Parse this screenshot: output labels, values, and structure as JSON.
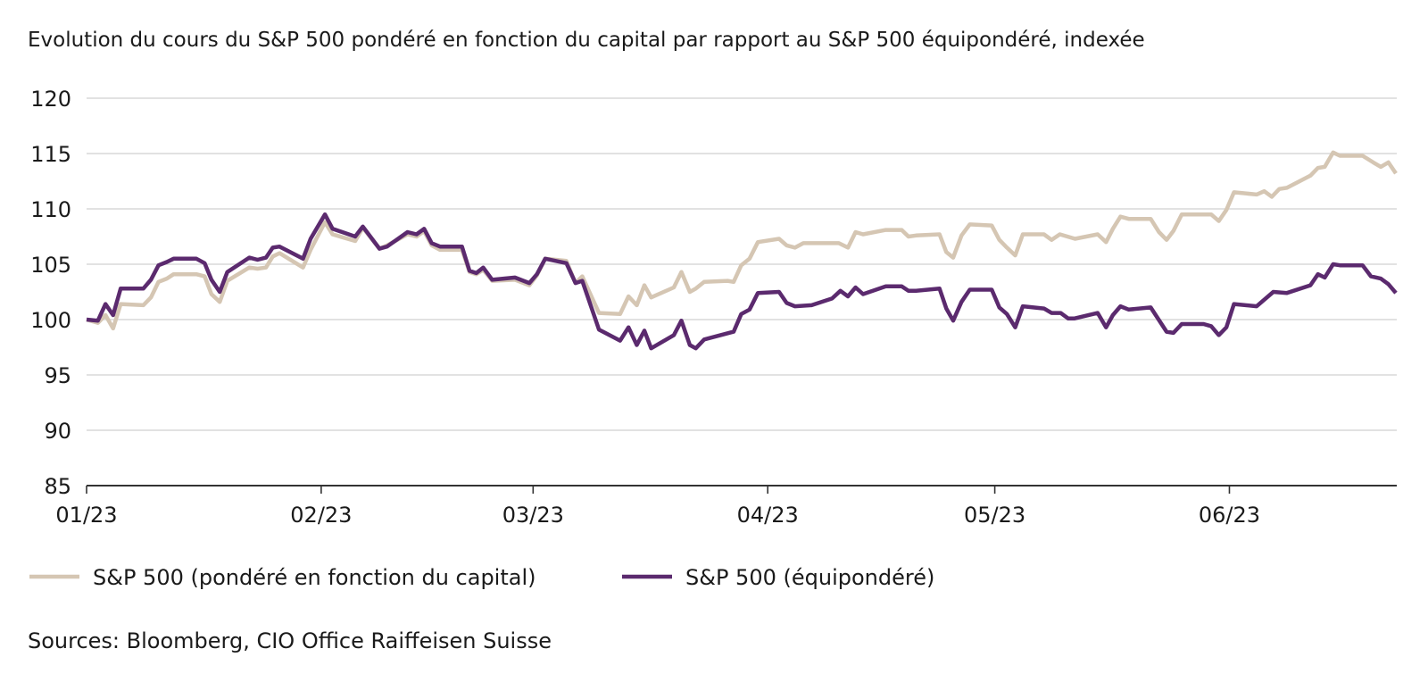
{
  "chart_data": {
    "type": "line",
    "title": "Evolution du cours du S&P 500 pondéré en fonction du capital par rapport au S&P 500 équipondéré, indexée",
    "xlabel": "",
    "ylabel": "",
    "x_unit": "days since 01/01/2023",
    "ylim": [
      85,
      120
    ],
    "yticks": [
      85,
      90,
      95,
      100,
      105,
      110,
      115,
      120
    ],
    "xlim": [
      0,
      173
    ],
    "xticks": [
      {
        "label": "01/23",
        "day": 0
      },
      {
        "label": "02/23",
        "day": 31
      },
      {
        "label": "03/23",
        "day": 59
      },
      {
        "label": "04/23",
        "day": 90
      },
      {
        "label": "05/23",
        "day": 120
      },
      {
        "label": "06/23",
        "day": 151
      }
    ],
    "grid": "horizontal",
    "legend_position": "bottom",
    "series": [
      {
        "name": "S&P 500 (pondéré en fonction du capital)",
        "color": "#d5c6b3",
        "points": [
          [
            0,
            100
          ],
          [
            1.5,
            99.7
          ],
          [
            2.5,
            100.4
          ],
          [
            3.5,
            99.2
          ],
          [
            4.5,
            101.4
          ],
          [
            7.5,
            101.3
          ],
          [
            8.5,
            102.0
          ],
          [
            9.5,
            103.4
          ],
          [
            10.6,
            103.7
          ],
          [
            11.5,
            104.1
          ],
          [
            14.5,
            104.1
          ],
          [
            15.6,
            103.9
          ],
          [
            16.5,
            102.3
          ],
          [
            17.6,
            101.6
          ],
          [
            18.6,
            103.5
          ],
          [
            21.5,
            104.7
          ],
          [
            22.6,
            104.6
          ],
          [
            23.7,
            104.7
          ],
          [
            24.6,
            105.7
          ],
          [
            25.5,
            106.0
          ],
          [
            28.6,
            104.7
          ],
          [
            29.6,
            106.3
          ],
          [
            31.5,
            108.8
          ],
          [
            32.5,
            107.7
          ],
          [
            35.5,
            107.1
          ],
          [
            36.5,
            108.3
          ],
          [
            38.7,
            106.4
          ],
          [
            39.7,
            106.7
          ],
          [
            42.4,
            107.7
          ],
          [
            43.6,
            107.5
          ],
          [
            44.6,
            108.0
          ],
          [
            45.6,
            106.7
          ],
          [
            46.7,
            106.3
          ],
          [
            49.6,
            106.3
          ],
          [
            50.6,
            104.3
          ],
          [
            51.5,
            104.1
          ],
          [
            52.4,
            104.5
          ],
          [
            53.6,
            103.5
          ],
          [
            56.6,
            103.6
          ],
          [
            58.5,
            103.1
          ],
          [
            59.5,
            104.0
          ],
          [
            60.6,
            105.5
          ],
          [
            63.4,
            105.3
          ],
          [
            64.6,
            103.3
          ],
          [
            65.5,
            103.9
          ],
          [
            67.7,
            100.6
          ],
          [
            70.5,
            100.5
          ],
          [
            71.6,
            102.1
          ],
          [
            72.7,
            101.3
          ],
          [
            73.7,
            103.1
          ],
          [
            74.6,
            102.0
          ],
          [
            77.6,
            102.9
          ],
          [
            78.6,
            104.3
          ],
          [
            79.7,
            102.5
          ],
          [
            80.5,
            102.8
          ],
          [
            81.6,
            103.4
          ],
          [
            84.7,
            103.5
          ],
          [
            85.5,
            103.4
          ],
          [
            86.5,
            104.9
          ],
          [
            87.6,
            105.5
          ],
          [
            88.7,
            107.0
          ],
          [
            91.5,
            107.3
          ],
          [
            92.5,
            106.7
          ],
          [
            93.6,
            106.5
          ],
          [
            94.7,
            106.9
          ],
          [
            99.4,
            106.9
          ],
          [
            100.6,
            106.5
          ],
          [
            101.6,
            107.9
          ],
          [
            102.6,
            107.7
          ],
          [
            105.6,
            108.1
          ],
          [
            107.7,
            108.1
          ],
          [
            108.6,
            107.5
          ],
          [
            109.6,
            107.6
          ],
          [
            112.7,
            107.7
          ],
          [
            113.6,
            106.1
          ],
          [
            114.5,
            105.6
          ],
          [
            115.6,
            107.6
          ],
          [
            116.7,
            108.6
          ],
          [
            119.6,
            108.5
          ],
          [
            120.6,
            107.2
          ],
          [
            121.6,
            106.5
          ],
          [
            122.7,
            105.8
          ],
          [
            123.7,
            107.7
          ],
          [
            126.5,
            107.7
          ],
          [
            127.5,
            107.2
          ],
          [
            128.6,
            107.7
          ],
          [
            130.6,
            107.3
          ],
          [
            133.6,
            107.7
          ],
          [
            134.7,
            107.0
          ],
          [
            135.6,
            108.2
          ],
          [
            136.6,
            109.3
          ],
          [
            137.7,
            109.1
          ],
          [
            140.6,
            109.1
          ],
          [
            141.7,
            107.9
          ],
          [
            142.7,
            107.2
          ],
          [
            143.6,
            108.0
          ],
          [
            144.7,
            109.5
          ],
          [
            148.6,
            109.5
          ],
          [
            149.6,
            108.9
          ],
          [
            150.6,
            109.9
          ],
          [
            151.6,
            111.5
          ],
          [
            154.6,
            111.3
          ],
          [
            155.6,
            111.6
          ],
          [
            156.6,
            111.1
          ],
          [
            157.6,
            111.8
          ],
          [
            158.6,
            111.9
          ],
          [
            161.7,
            113.0
          ],
          [
            162.7,
            113.7
          ],
          [
            163.6,
            113.8
          ],
          [
            164.7,
            115.1
          ],
          [
            165.6,
            114.8
          ],
          [
            168.6,
            114.8
          ],
          [
            170,
            114.2
          ],
          [
            171,
            113.8
          ],
          [
            172,
            114.2
          ],
          [
            173,
            113.2
          ]
        ]
      },
      {
        "name": "S&P 500 (équipondéré)",
        "color": "#5b2a6e",
        "points": [
          [
            0,
            100
          ],
          [
            1.5,
            99.9
          ],
          [
            2.5,
            101.4
          ],
          [
            3.5,
            100.4
          ],
          [
            4.5,
            102.8
          ],
          [
            7.5,
            102.8
          ],
          [
            8.5,
            103.6
          ],
          [
            9.5,
            104.9
          ],
          [
            10.6,
            105.2
          ],
          [
            11.5,
            105.5
          ],
          [
            14.5,
            105.5
          ],
          [
            15.6,
            105.1
          ],
          [
            16.5,
            103.6
          ],
          [
            17.6,
            102.5
          ],
          [
            18.6,
            104.3
          ],
          [
            21.5,
            105.6
          ],
          [
            22.6,
            105.4
          ],
          [
            23.7,
            105.6
          ],
          [
            24.6,
            106.5
          ],
          [
            25.5,
            106.6
          ],
          [
            28.6,
            105.5
          ],
          [
            29.6,
            107.3
          ],
          [
            31.5,
            109.5
          ],
          [
            32.5,
            108.2
          ],
          [
            35.5,
            107.5
          ],
          [
            36.5,
            108.4
          ],
          [
            38.7,
            106.4
          ],
          [
            39.7,
            106.6
          ],
          [
            42.4,
            107.9
          ],
          [
            43.6,
            107.7
          ],
          [
            44.6,
            108.2
          ],
          [
            45.6,
            106.9
          ],
          [
            46.7,
            106.6
          ],
          [
            49.6,
            106.6
          ],
          [
            50.6,
            104.4
          ],
          [
            51.5,
            104.2
          ],
          [
            52.4,
            104.7
          ],
          [
            53.6,
            103.6
          ],
          [
            56.6,
            103.8
          ],
          [
            58.5,
            103.3
          ],
          [
            59.5,
            104.1
          ],
          [
            60.6,
            105.5
          ],
          [
            63.4,
            105.1
          ],
          [
            64.6,
            103.3
          ],
          [
            65.5,
            103.5
          ],
          [
            67.7,
            99.1
          ],
          [
            70.5,
            98.1
          ],
          [
            71.6,
            99.3
          ],
          [
            72.7,
            97.7
          ],
          [
            73.7,
            99.0
          ],
          [
            74.6,
            97.4
          ],
          [
            77.6,
            98.6
          ],
          [
            78.6,
            99.9
          ],
          [
            79.7,
            97.7
          ],
          [
            80.5,
            97.4
          ],
          [
            81.6,
            98.2
          ],
          [
            85.5,
            98.9
          ],
          [
            86.5,
            100.5
          ],
          [
            87.6,
            100.9
          ],
          [
            88.7,
            102.4
          ],
          [
            91.5,
            102.5
          ],
          [
            92.5,
            101.5
          ],
          [
            93.6,
            101.2
          ],
          [
            95.8,
            101.3
          ],
          [
            98.5,
            101.9
          ],
          [
            99.6,
            102.6
          ],
          [
            100.6,
            102.1
          ],
          [
            101.6,
            102.9
          ],
          [
            102.6,
            102.3
          ],
          [
            105.6,
            103.0
          ],
          [
            107.7,
            103.0
          ],
          [
            108.6,
            102.6
          ],
          [
            109.6,
            102.6
          ],
          [
            112.7,
            102.8
          ],
          [
            113.6,
            101.0
          ],
          [
            114.5,
            99.9
          ],
          [
            115.6,
            101.6
          ],
          [
            116.7,
            102.7
          ],
          [
            119.6,
            102.7
          ],
          [
            120.6,
            101.1
          ],
          [
            121.6,
            100.5
          ],
          [
            122.7,
            99.3
          ],
          [
            123.7,
            101.2
          ],
          [
            126.5,
            101.0
          ],
          [
            127.5,
            100.6
          ],
          [
            128.7,
            100.6
          ],
          [
            129.7,
            100.1
          ],
          [
            130.5,
            100.1
          ],
          [
            133.6,
            100.6
          ],
          [
            134.7,
            99.3
          ],
          [
            135.6,
            100.4
          ],
          [
            136.6,
            101.2
          ],
          [
            137.7,
            100.9
          ],
          [
            140.6,
            101.1
          ],
          [
            142.7,
            98.9
          ],
          [
            143.6,
            98.8
          ],
          [
            144.7,
            99.6
          ],
          [
            147.6,
            99.6
          ],
          [
            148.6,
            99.4
          ],
          [
            149.6,
            98.6
          ],
          [
            150.6,
            99.3
          ],
          [
            151.6,
            101.4
          ],
          [
            154.6,
            101.2
          ],
          [
            156.8,
            102.5
          ],
          [
            158.6,
            102.4
          ],
          [
            161.7,
            103.1
          ],
          [
            162.7,
            104.1
          ],
          [
            163.6,
            103.8
          ],
          [
            164.7,
            105.0
          ],
          [
            165.6,
            104.9
          ],
          [
            168.6,
            104.9
          ],
          [
            169.7,
            103.9
          ],
          [
            171,
            103.7
          ],
          [
            172,
            103.2
          ],
          [
            173,
            102.4
          ]
        ]
      }
    ],
    "source": "Sources: Bloomberg, CIO Office Raiffeisen Suisse"
  }
}
